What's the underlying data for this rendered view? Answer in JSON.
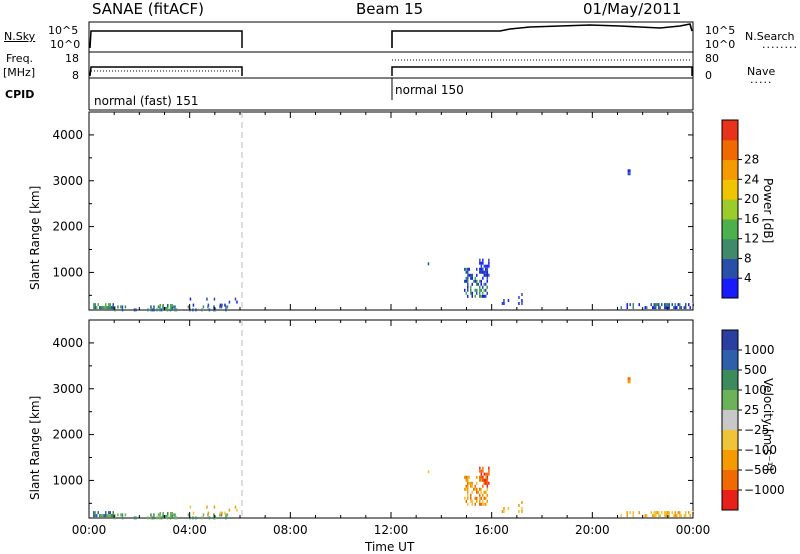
{
  "header": {
    "station": "SANAE (fitACF)",
    "beam": "Beam 15",
    "date": "01/May/2011"
  },
  "status_panels": {
    "nsky_label": "N.Sky",
    "freq_label_1": "Freq.",
    "freq_label_2": "[MHz]",
    "cpid_label": "CPID",
    "nsearch_label": "N.Search",
    "nave_label": "Nave",
    "nsky_ticks": [
      "10^5",
      "10^0"
    ],
    "freq_ticks": [
      "18",
      "8"
    ],
    "nsearch_ticks": [
      "10^5",
      "10^0"
    ],
    "nave_ticks": [
      "80",
      "0"
    ],
    "cpid_segments": [
      {
        "label": "normal (fast) 151",
        "start_h": 0,
        "end_h": 6
      },
      {
        "label": "normal 150",
        "start_h": 12,
        "end_h": 24
      }
    ]
  },
  "chart_data": [
    {
      "type": "heatmap",
      "title": "",
      "xlabel": "Time UT",
      "ylabel": "Slant Range [km]",
      "colorbar_label": "Power [dB]",
      "xlim": [
        0,
        24
      ],
      "ylim": [
        180,
        4500
      ],
      "x_ticks": [
        "00:00",
        "04:00",
        "08:00",
        "12:00",
        "16:00",
        "20:00",
        "00:00"
      ],
      "y_ticks": [
        1000,
        2000,
        3000,
        4000
      ],
      "colorbar_ticks": [
        "4",
        "8",
        "12",
        "16",
        "20",
        "24",
        "28"
      ],
      "colorbar_colors": [
        "#1a1aff",
        "#2a4fa8",
        "#3e8a6a",
        "#4cb14c",
        "#9ccc2a",
        "#f0c400",
        "#f59b00",
        "#f06a00",
        "#e8331a"
      ],
      "scatter_regions": [
        {
          "t0": 0.1,
          "t1": 1.0,
          "r0": 200,
          "r1": 330,
          "density": 0.6,
          "palette": [
            1,
            2,
            3
          ]
        },
        {
          "t0": 1.0,
          "t1": 6.0,
          "r0": 200,
          "r1": 280,
          "density": 0.25,
          "palette": [
            1,
            2
          ]
        },
        {
          "t0": 2.8,
          "t1": 3.3,
          "r0": 200,
          "r1": 310,
          "density": 0.6,
          "palette": [
            1,
            2,
            3
          ]
        },
        {
          "t0": 4.0,
          "t1": 6.0,
          "r0": 280,
          "r1": 450,
          "density": 0.1,
          "palette": [
            0,
            1
          ]
        },
        {
          "t0": 14.9,
          "t1": 15.8,
          "r0": 450,
          "r1": 1100,
          "density": 0.5,
          "palette": [
            1,
            2,
            3,
            0
          ]
        },
        {
          "t0": 15.5,
          "t1": 15.9,
          "r0": 900,
          "r1": 1300,
          "density": 0.45,
          "palette": [
            1,
            0
          ]
        },
        {
          "t0": 16.4,
          "t1": 17.2,
          "r0": 350,
          "r1": 550,
          "density": 0.1,
          "palette": [
            1,
            0
          ]
        },
        {
          "t0": 21.0,
          "t1": 24.0,
          "r0": 200,
          "r1": 330,
          "density": 0.35,
          "palette": [
            1,
            2,
            0
          ]
        },
        {
          "t0": 21.4,
          "t1": 21.5,
          "r0": 3150,
          "r1": 3250,
          "density": 0.8,
          "palette": [
            1,
            0
          ]
        },
        {
          "t0": 13.4,
          "t1": 13.5,
          "r0": 1180,
          "r1": 1220,
          "density": 0.8,
          "palette": [
            1
          ]
        }
      ]
    },
    {
      "type": "heatmap",
      "title": "",
      "xlabel": "Time UT",
      "ylabel": "Slant Range [km]",
      "colorbar_label": "Velocity [m s⁻¹]",
      "xlim": [
        0,
        24
      ],
      "ylim": [
        180,
        4500
      ],
      "x_ticks": [
        "00:00",
        "04:00",
        "08:00",
        "12:00",
        "16:00",
        "20:00",
        "00:00"
      ],
      "y_ticks": [
        1000,
        2000,
        3000,
        4000
      ],
      "colorbar_ticks": [
        "1000",
        "500",
        "100",
        "25",
        "−25",
        "−100",
        "−500",
        "−1000"
      ],
      "colorbar_colors": [
        "#2a3fa0",
        "#2f5fa8",
        "#3d8a5a",
        "#6bb25a",
        "#c8c8c8",
        "#f0c43a",
        "#f59b00",
        "#f06a00",
        "#e8201a"
      ],
      "scatter_regions": [
        {
          "t0": 0.1,
          "t1": 1.0,
          "r0": 200,
          "r1": 330,
          "density": 0.6,
          "palette": [
            2,
            3,
            1
          ]
        },
        {
          "t0": 1.0,
          "t1": 6.0,
          "r0": 200,
          "r1": 280,
          "density": 0.25,
          "palette": [
            2,
            3
          ]
        },
        {
          "t0": 2.8,
          "t1": 3.3,
          "r0": 200,
          "r1": 310,
          "density": 0.6,
          "palette": [
            2,
            3
          ]
        },
        {
          "t0": 4.0,
          "t1": 6.0,
          "r0": 280,
          "r1": 450,
          "density": 0.1,
          "palette": [
            5,
            6
          ]
        },
        {
          "t0": 14.9,
          "t1": 15.8,
          "r0": 450,
          "r1": 1100,
          "density": 0.5,
          "palette": [
            6,
            7,
            5
          ]
        },
        {
          "t0": 15.5,
          "t1": 15.9,
          "r0": 900,
          "r1": 1300,
          "density": 0.45,
          "palette": [
            8,
            7
          ]
        },
        {
          "t0": 16.4,
          "t1": 17.2,
          "r0": 350,
          "r1": 550,
          "density": 0.1,
          "palette": [
            6,
            5
          ]
        },
        {
          "t0": 21.0,
          "t1": 24.0,
          "r0": 200,
          "r1": 330,
          "density": 0.35,
          "palette": [
            5,
            6
          ]
        },
        {
          "t0": 21.4,
          "t1": 21.5,
          "r0": 3150,
          "r1": 3250,
          "density": 0.8,
          "palette": [
            6,
            7
          ]
        },
        {
          "t0": 13.4,
          "t1": 13.5,
          "r0": 1180,
          "r1": 1220,
          "density": 0.8,
          "palette": [
            5
          ]
        }
      ]
    }
  ]
}
